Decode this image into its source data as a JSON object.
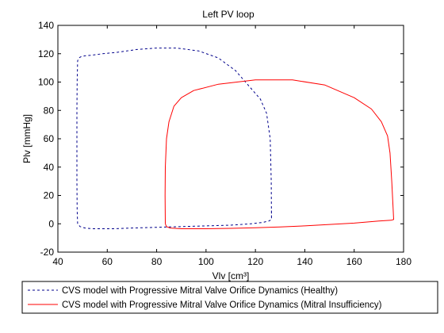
{
  "chart_data": {
    "type": "line",
    "title": "Left PV loop",
    "xlabel": "Vlv [cm³]",
    "ylabel": "Plv [mmHg]",
    "xlim": [
      40,
      180
    ],
    "ylim": [
      -20,
      140
    ],
    "xticks": [
      "40",
      "60",
      "80",
      "100",
      "120",
      "140",
      "160",
      "180"
    ],
    "yticks": [
      "140",
      "120",
      "100",
      "80",
      "60",
      "40",
      "20",
      "0",
      "-20"
    ],
    "grid": false,
    "legend_position": "bottom",
    "series": [
      {
        "name": "CVS model with Progressive Mitral Valve Orifice Dynamics (Healthy)",
        "color": "#00008B",
        "style": "dashed",
        "x": [
          126.5,
          126.4,
          126,
          124.5,
          122,
          118,
          112,
          105,
          97,
          88,
          80,
          72,
          64,
          58,
          54,
          51,
          49.5,
          48.5,
          48,
          47.8,
          47.7,
          47.7,
          47.7,
          47.8,
          48,
          49,
          51,
          54,
          58,
          63,
          70,
          80,
          90,
          100,
          110,
          118,
          123,
          125.5,
          126.5,
          126.5,
          126.5,
          126.5
        ],
        "y": [
          4,
          30,
          60,
          78,
          88,
          96,
          108,
          117,
          122,
          124,
          124,
          123,
          121,
          120,
          119,
          118.5,
          118,
          117,
          115,
          100,
          80,
          60,
          30,
          10,
          0,
          -2,
          -3,
          -3.5,
          -3.5,
          -3.5,
          -3,
          -2.5,
          -2,
          -1.5,
          -1,
          0,
          1,
          2,
          3,
          4,
          10,
          4
        ]
      },
      {
        "name": "CVS model with Progressive Mitral Valve Orifice Dynamics (Mitral Insufficiency)",
        "color": "#FF0000",
        "style": "solid",
        "x": [
          83.5,
          83.4,
          83.5,
          84,
          85,
          87,
          90,
          95,
          105,
          120,
          135,
          148,
          160,
          167,
          171,
          173.5,
          174.5,
          175.2,
          175.8,
          176,
          175,
          170,
          160,
          150,
          140,
          130,
          120,
          110,
          100,
          90,
          85.5,
          84,
          83.5
        ],
        "y": [
          0,
          20,
          40,
          60,
          72,
          83,
          89,
          94,
          98.5,
          101.5,
          101.5,
          98,
          89,
          81,
          72,
          62,
          50,
          30,
          10,
          3,
          2.5,
          2,
          0.5,
          -0.5,
          -1.5,
          -2.2,
          -2.8,
          -3.2,
          -3.5,
          -3.5,
          -3,
          -2,
          0
        ]
      }
    ]
  }
}
